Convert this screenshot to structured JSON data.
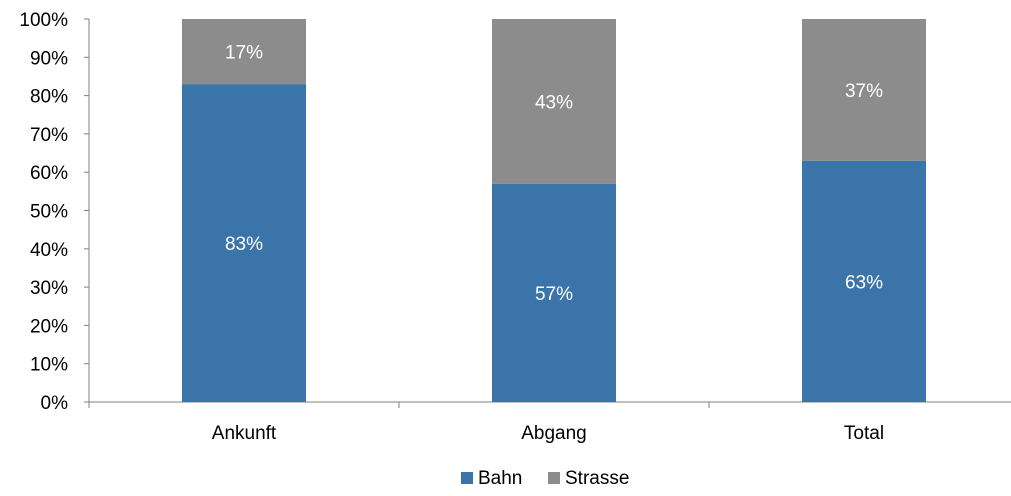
{
  "chart_data": {
    "type": "bar",
    "stacked": true,
    "categories": [
      "Ankunft",
      "Abgang",
      "Total"
    ],
    "series": [
      {
        "name": "Bahn",
        "values": [
          83,
          57,
          63
        ],
        "labels": [
          "83%",
          "57%",
          "63%"
        ],
        "color": "#3a74a8"
      },
      {
        "name": "Strasse",
        "values": [
          17,
          43,
          37
        ],
        "labels": [
          "17%",
          "43%",
          "37%"
        ],
        "color": "#8c8c8c"
      }
    ],
    "ylim": [
      0,
      100
    ],
    "yticks": [
      "0%",
      "10%",
      "20%",
      "30%",
      "40%",
      "50%",
      "60%",
      "70%",
      "80%",
      "90%",
      "100%"
    ],
    "grid": false,
    "legend": "bottom"
  }
}
